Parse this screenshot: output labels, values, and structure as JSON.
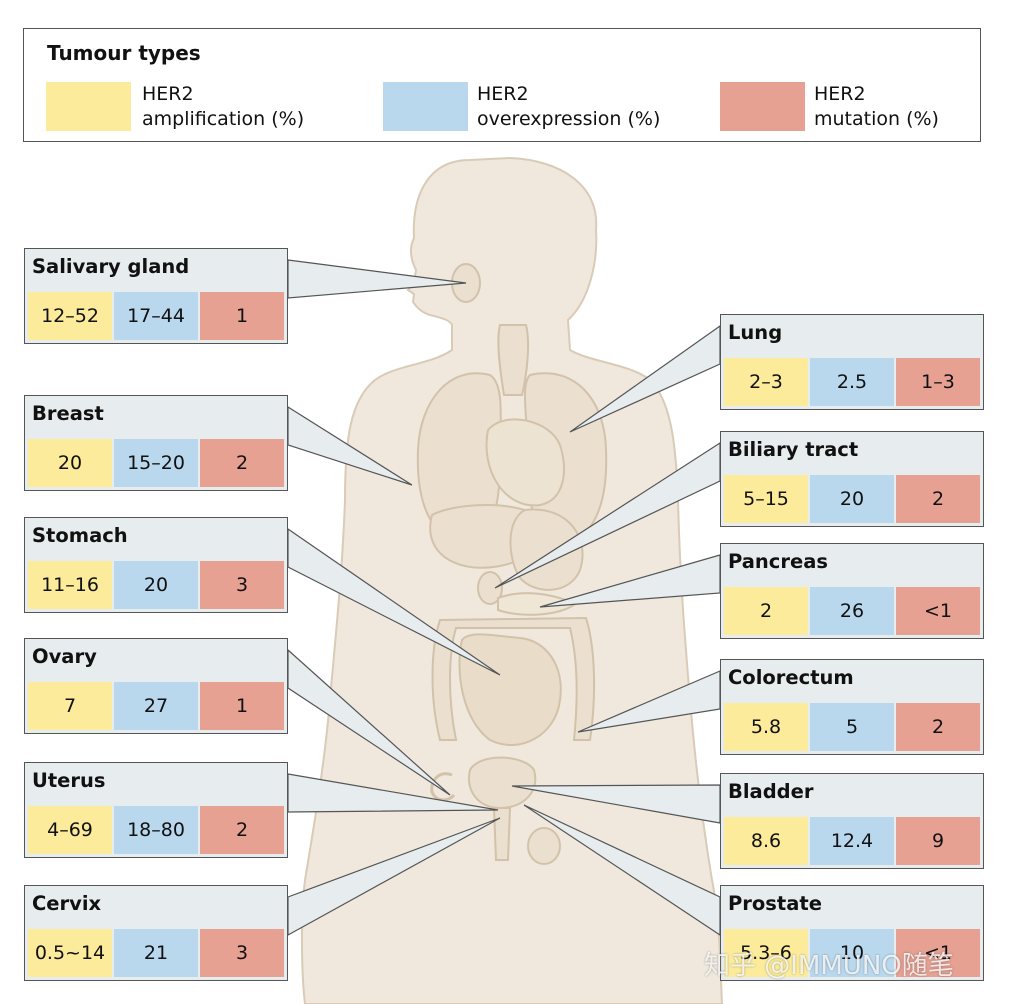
{
  "colors": {
    "amplification": "#fbeb9a",
    "overexpression": "#b9d8ee",
    "mutation": "#e6a193",
    "card_bg": "#e7ecee",
    "body_fill": "#f0e8dc",
    "body_stroke": "#d9cbb7",
    "organ_fill": "#ebe0cf",
    "organ_stroke": "#d2c2a9"
  },
  "legend": {
    "title": "Tumour types",
    "items": [
      {
        "line1": "HER2",
        "line2": "amplification (%)",
        "color": "#fbeb9a",
        "icon": "yellow-swatch"
      },
      {
        "line1": "HER2",
        "line2": "overexpression (%)",
        "color": "#b9d8ee",
        "icon": "blue-swatch"
      },
      {
        "line1": "HER2",
        "line2": "mutation (%)",
        "color": "#e6a193",
        "icon": "red-swatch"
      }
    ]
  },
  "tumours": [
    {
      "name": "Salivary gland",
      "amplification": "12–52",
      "overexpression": "17–44",
      "mutation": "1"
    },
    {
      "name": "Breast",
      "amplification": "20",
      "overexpression": "15–20",
      "mutation": "2"
    },
    {
      "name": "Stomach",
      "amplification": "11–16",
      "overexpression": "20",
      "mutation": "3"
    },
    {
      "name": "Ovary",
      "amplification": "7",
      "overexpression": "27",
      "mutation": "1"
    },
    {
      "name": "Uterus",
      "amplification": "4–69",
      "overexpression": "18–80",
      "mutation": "2"
    },
    {
      "name": "Cervix",
      "amplification": "0.5~14",
      "overexpression": "21",
      "mutation": "3"
    },
    {
      "name": "Lung",
      "amplification": "2–3",
      "overexpression": "2.5",
      "mutation": "1–3"
    },
    {
      "name": "Biliary tract",
      "amplification": "5–15",
      "overexpression": "20",
      "mutation": "2"
    },
    {
      "name": "Pancreas",
      "amplification": "2",
      "overexpression": "26",
      "mutation": "<1"
    },
    {
      "name": "Colorectum",
      "amplification": "5.8",
      "overexpression": "5",
      "mutation": "2"
    },
    {
      "name": "Bladder",
      "amplification": "8.6",
      "overexpression": "12.4",
      "mutation": "9"
    },
    {
      "name": "Prostate",
      "amplification": "5.3–6",
      "overexpression": "10",
      "mutation": "<1"
    }
  ],
  "watermark": "知乎 @IMMUNO随笔"
}
